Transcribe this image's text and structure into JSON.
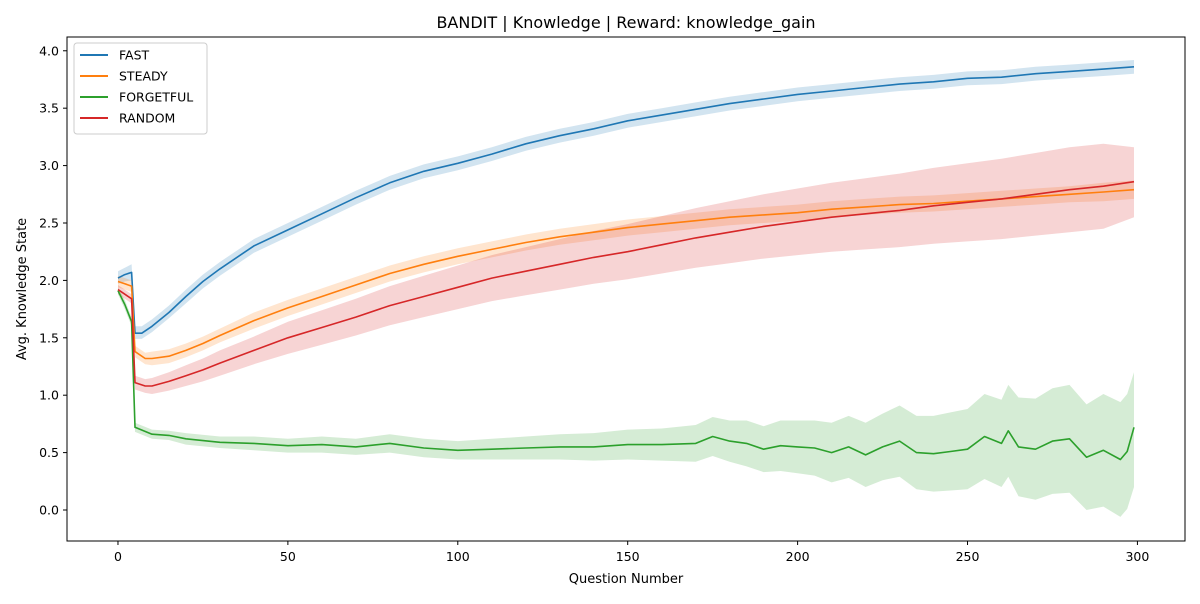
{
  "chart_data": {
    "type": "line",
    "title": "BANDIT | Knowledge | Reward: knowledge_gain",
    "xlabel": "Question Number",
    "ylabel": "Avg. Knowledge State",
    "xlim": [
      -15,
      314
    ],
    "ylim": [
      -0.27,
      4.12
    ],
    "xticks": [
      0,
      50,
      100,
      150,
      200,
      250,
      300
    ],
    "yticks": [
      0.0,
      0.5,
      1.0,
      1.5,
      2.0,
      2.5,
      3.0,
      3.5,
      4.0
    ],
    "xtick_labels": [
      "0",
      "50",
      "100",
      "150",
      "200",
      "250",
      "300"
    ],
    "ytick_labels": [
      "0.0",
      "0.5",
      "1.0",
      "1.5",
      "2.0",
      "2.5",
      "3.0",
      "3.5",
      "4.0"
    ],
    "grid": false,
    "legend_position": "top-left",
    "shaded_band": "mean ± spread",
    "series": [
      {
        "name": "FAST",
        "color": "#1f77b4",
        "x": [
          0,
          2,
          4,
          5,
          7,
          10,
          15,
          20,
          25,
          30,
          40,
          50,
          60,
          70,
          80,
          90,
          100,
          110,
          120,
          130,
          140,
          150,
          160,
          170,
          180,
          190,
          200,
          210,
          220,
          230,
          240,
          250,
          260,
          270,
          280,
          290,
          299
        ],
        "values": [
          2.02,
          2.05,
          2.07,
          1.54,
          1.54,
          1.6,
          1.72,
          1.86,
          1.99,
          2.1,
          2.3,
          2.44,
          2.58,
          2.72,
          2.85,
          2.95,
          3.02,
          3.1,
          3.19,
          3.26,
          3.32,
          3.39,
          3.44,
          3.49,
          3.54,
          3.58,
          3.62,
          3.65,
          3.68,
          3.71,
          3.73,
          3.76,
          3.77,
          3.8,
          3.82,
          3.84,
          3.86
        ],
        "lower": [
          1.97,
          1.99,
          2.0,
          1.49,
          1.49,
          1.55,
          1.67,
          1.8,
          1.93,
          2.04,
          2.24,
          2.38,
          2.52,
          2.66,
          2.79,
          2.89,
          2.96,
          3.04,
          3.13,
          3.2,
          3.26,
          3.33,
          3.38,
          3.43,
          3.48,
          3.52,
          3.56,
          3.59,
          3.62,
          3.65,
          3.67,
          3.7,
          3.71,
          3.74,
          3.76,
          3.78,
          3.8
        ],
        "upper": [
          2.08,
          2.11,
          2.14,
          1.6,
          1.6,
          1.66,
          1.78,
          1.92,
          2.05,
          2.16,
          2.36,
          2.5,
          2.64,
          2.78,
          2.91,
          3.01,
          3.08,
          3.16,
          3.25,
          3.32,
          3.38,
          3.45,
          3.5,
          3.55,
          3.6,
          3.64,
          3.68,
          3.71,
          3.74,
          3.77,
          3.79,
          3.82,
          3.83,
          3.86,
          3.88,
          3.9,
          3.92
        ]
      },
      {
        "name": "STEADY",
        "color": "#ff7f0e",
        "x": [
          0,
          2,
          4,
          5,
          8,
          10,
          15,
          20,
          25,
          30,
          40,
          50,
          60,
          70,
          80,
          90,
          100,
          110,
          120,
          130,
          140,
          150,
          160,
          170,
          180,
          190,
          200,
          210,
          220,
          230,
          240,
          250,
          260,
          270,
          280,
          290,
          299
        ],
        "values": [
          1.99,
          1.97,
          1.95,
          1.38,
          1.32,
          1.32,
          1.34,
          1.39,
          1.45,
          1.52,
          1.65,
          1.76,
          1.86,
          1.96,
          2.06,
          2.14,
          2.21,
          2.27,
          2.33,
          2.38,
          2.42,
          2.46,
          2.49,
          2.52,
          2.55,
          2.57,
          2.59,
          2.62,
          2.64,
          2.66,
          2.67,
          2.69,
          2.71,
          2.73,
          2.75,
          2.77,
          2.79
        ],
        "lower": [
          1.94,
          1.92,
          1.9,
          1.33,
          1.27,
          1.26,
          1.28,
          1.33,
          1.39,
          1.46,
          1.58,
          1.69,
          1.79,
          1.89,
          1.99,
          2.07,
          2.14,
          2.2,
          2.26,
          2.31,
          2.35,
          2.39,
          2.42,
          2.45,
          2.48,
          2.5,
          2.52,
          2.55,
          2.57,
          2.59,
          2.6,
          2.62,
          2.64,
          2.66,
          2.68,
          2.69,
          2.71
        ],
        "upper": [
          2.04,
          2.02,
          2.0,
          1.43,
          1.37,
          1.38,
          1.4,
          1.45,
          1.51,
          1.58,
          1.72,
          1.83,
          1.93,
          2.03,
          2.13,
          2.21,
          2.28,
          2.34,
          2.4,
          2.45,
          2.49,
          2.53,
          2.56,
          2.59,
          2.62,
          2.64,
          2.66,
          2.69,
          2.71,
          2.73,
          2.74,
          2.76,
          2.78,
          2.8,
          2.82,
          2.85,
          2.87
        ]
      },
      {
        "name": "FORGETFUL",
        "color": "#2ca02c",
        "x": [
          0,
          2,
          4,
          5,
          10,
          15,
          20,
          30,
          40,
          50,
          60,
          70,
          80,
          90,
          100,
          110,
          120,
          130,
          140,
          150,
          160,
          170,
          175,
          180,
          185,
          190,
          195,
          200,
          205,
          210,
          215,
          220,
          225,
          230,
          235,
          240,
          245,
          250,
          255,
          260,
          262,
          265,
          270,
          275,
          280,
          285,
          290,
          295,
          297,
          299
        ],
        "values": [
          1.91,
          1.79,
          1.64,
          0.72,
          0.66,
          0.65,
          0.62,
          0.59,
          0.58,
          0.56,
          0.57,
          0.55,
          0.58,
          0.54,
          0.52,
          0.53,
          0.54,
          0.55,
          0.55,
          0.57,
          0.57,
          0.58,
          0.64,
          0.6,
          0.58,
          0.53,
          0.56,
          0.55,
          0.54,
          0.5,
          0.55,
          0.48,
          0.55,
          0.6,
          0.5,
          0.49,
          0.51,
          0.53,
          0.64,
          0.58,
          0.69,
          0.55,
          0.53,
          0.6,
          0.62,
          0.46,
          0.52,
          0.44,
          0.51,
          0.72
        ],
        "lower": [
          1.88,
          1.75,
          1.6,
          0.68,
          0.62,
          0.61,
          0.57,
          0.54,
          0.52,
          0.5,
          0.5,
          0.48,
          0.5,
          0.46,
          0.44,
          0.44,
          0.44,
          0.44,
          0.43,
          0.44,
          0.43,
          0.42,
          0.47,
          0.42,
          0.38,
          0.33,
          0.34,
          0.32,
          0.3,
          0.24,
          0.28,
          0.2,
          0.26,
          0.29,
          0.18,
          0.16,
          0.17,
          0.18,
          0.27,
          0.2,
          0.29,
          0.12,
          0.09,
          0.14,
          0.15,
          0.0,
          0.03,
          -0.06,
          0.01,
          0.2
        ],
        "upper": [
          1.94,
          1.83,
          1.68,
          0.76,
          0.7,
          0.69,
          0.67,
          0.64,
          0.64,
          0.62,
          0.64,
          0.62,
          0.66,
          0.62,
          0.6,
          0.62,
          0.64,
          0.66,
          0.67,
          0.7,
          0.71,
          0.74,
          0.81,
          0.78,
          0.78,
          0.73,
          0.78,
          0.78,
          0.78,
          0.76,
          0.82,
          0.76,
          0.84,
          0.91,
          0.82,
          0.82,
          0.85,
          0.88,
          1.01,
          0.96,
          1.09,
          0.98,
          0.97,
          1.06,
          1.09,
          0.92,
          1.01,
          0.94,
          1.01,
          1.2
        ]
      },
      {
        "name": "RANDOM",
        "color": "#d62728",
        "x": [
          0,
          2,
          4,
          5,
          8,
          10,
          15,
          20,
          25,
          30,
          40,
          50,
          60,
          70,
          80,
          90,
          100,
          110,
          120,
          130,
          140,
          150,
          160,
          170,
          180,
          190,
          200,
          210,
          220,
          230,
          240,
          250,
          260,
          270,
          280,
          290,
          299
        ],
        "values": [
          1.92,
          1.88,
          1.84,
          1.11,
          1.08,
          1.08,
          1.12,
          1.17,
          1.22,
          1.28,
          1.39,
          1.5,
          1.59,
          1.68,
          1.78,
          1.86,
          1.94,
          2.02,
          2.08,
          2.14,
          2.2,
          2.25,
          2.31,
          2.37,
          2.42,
          2.47,
          2.51,
          2.55,
          2.58,
          2.61,
          2.65,
          2.68,
          2.71,
          2.75,
          2.79,
          2.82,
          2.86
        ],
        "lower": [
          1.88,
          1.84,
          1.8,
          1.05,
          1.02,
          1.01,
          1.04,
          1.08,
          1.12,
          1.17,
          1.27,
          1.36,
          1.44,
          1.52,
          1.61,
          1.68,
          1.75,
          1.82,
          1.87,
          1.92,
          1.97,
          2.01,
          2.06,
          2.11,
          2.15,
          2.19,
          2.22,
          2.25,
          2.27,
          2.29,
          2.32,
          2.34,
          2.36,
          2.39,
          2.42,
          2.45,
          2.55
        ],
        "upper": [
          1.96,
          1.92,
          1.88,
          1.17,
          1.14,
          1.15,
          1.2,
          1.26,
          1.32,
          1.39,
          1.51,
          1.64,
          1.74,
          1.84,
          1.95,
          2.04,
          2.13,
          2.22,
          2.29,
          2.36,
          2.43,
          2.49,
          2.56,
          2.63,
          2.69,
          2.75,
          2.8,
          2.85,
          2.89,
          2.93,
          2.98,
          3.02,
          3.06,
          3.11,
          3.16,
          3.19,
          3.16
        ]
      }
    ]
  }
}
